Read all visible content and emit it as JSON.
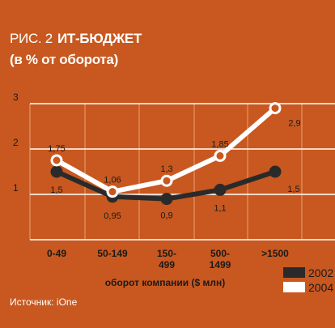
{
  "figure": {
    "label": "РИС. 2",
    "title": "ИТ-БЮДЖЕТ",
    "subtitle": "(в % от оборота)",
    "source": "Источник: iOne"
  },
  "colors": {
    "background": "#c8581f",
    "grid": "#ffffff",
    "series_2002": "#2a2a2a",
    "series_2004": "#ffffff"
  },
  "chart_data": {
    "type": "line",
    "categories": [
      "0-49",
      "50-149",
      "150-499",
      "500-1499",
      ">1500"
    ],
    "category_labels": [
      [
        "0-49"
      ],
      [
        "50-149"
      ],
      [
        "150-",
        "499"
      ],
      [
        "500-",
        "1499"
      ],
      [
        ">1500"
      ]
    ],
    "xlabel": "оборот компании ($ млн)",
    "ylabel": "",
    "ylim": [
      0,
      3
    ],
    "yticks": [
      {
        "value": 1,
        "label": "1"
      },
      {
        "value": 2,
        "label": "2"
      },
      {
        "value": 3,
        "label": "3"
      }
    ],
    "grid": true,
    "legend_position": "bottom-right",
    "series": [
      {
        "name": "2002",
        "values": [
          1.5,
          0.95,
          0.9,
          1.1,
          1.5
        ],
        "labels": [
          "1,5",
          "0,95",
          "0,9",
          "1,1",
          "1,5"
        ],
        "color": "#2a2a2a"
      },
      {
        "name": "2004",
        "values": [
          1.75,
          1.06,
          1.3,
          1.85,
          2.9
        ],
        "labels": [
          "1,75",
          "1,06",
          "1,3",
          "1,85",
          "2,9"
        ],
        "color": "#ffffff"
      }
    ]
  }
}
